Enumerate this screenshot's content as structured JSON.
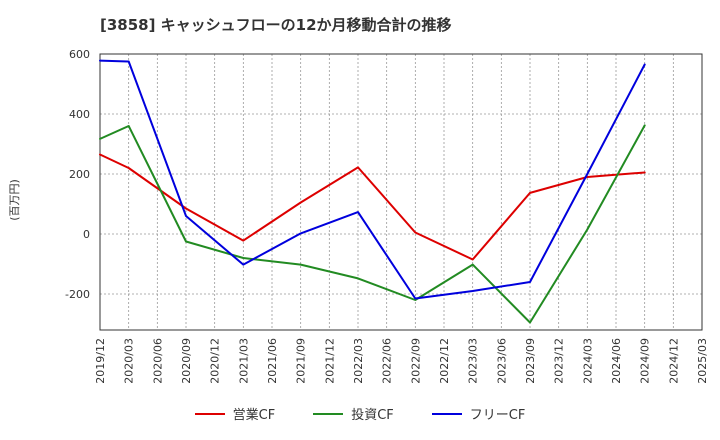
{
  "chart_data": {
    "type": "line",
    "title": "[3858]  キャッシュフローの12か月移動合計の推移",
    "ylabel": "(百万円)",
    "ylim": [
      -320,
      600
    ],
    "yticks": [
      600,
      400,
      200,
      0,
      -200
    ],
    "x_ticks": [
      "2019/12",
      "2020/03",
      "2020/06",
      "2020/09",
      "2020/12",
      "2021/03",
      "2021/06",
      "2021/09",
      "2021/12",
      "2022/03",
      "2022/06",
      "2022/09",
      "2022/12",
      "2023/03",
      "2023/06",
      "2023/09",
      "2023/12",
      "2024/03",
      "2024/06",
      "2024/09",
      "2024/12",
      "2025/03"
    ],
    "grid": true,
    "legend_position": "bottom",
    "series": [
      {
        "name": "営業CF",
        "color": "#dd0000",
        "points": [
          [
            "2019/12",
            265
          ],
          [
            "2020/03",
            220
          ],
          [
            "2020/09",
            85
          ],
          [
            "2021/03",
            -22
          ],
          [
            "2021/09",
            105
          ],
          [
            "2022/03",
            222
          ],
          [
            "2022/09",
            5
          ],
          [
            "2023/03",
            -85
          ],
          [
            "2023/09",
            137
          ],
          [
            "2024/03",
            190
          ],
          [
            "2024/09",
            205
          ]
        ]
      },
      {
        "name": "投資CF",
        "color": "#228B22",
        "points": [
          [
            "2019/12",
            317
          ],
          [
            "2020/03",
            360
          ],
          [
            "2020/09",
            -25
          ],
          [
            "2021/03",
            -80
          ],
          [
            "2021/09",
            -102
          ],
          [
            "2022/03",
            -148
          ],
          [
            "2022/09",
            -220
          ],
          [
            "2023/03",
            -102
          ],
          [
            "2023/09",
            -295
          ],
          [
            "2024/03",
            15
          ],
          [
            "2024/09",
            362
          ]
        ]
      },
      {
        "name": "フリーCF",
        "color": "#0000dd",
        "points": [
          [
            "2019/12",
            578
          ],
          [
            "2020/03",
            575
          ],
          [
            "2020/09",
            60
          ],
          [
            "2021/03",
            -102
          ],
          [
            "2021/09",
            2
          ],
          [
            "2022/03",
            73
          ],
          [
            "2022/09",
            -215
          ],
          [
            "2023/03",
            -190
          ],
          [
            "2023/09",
            -160
          ],
          [
            "2024/03",
            200
          ],
          [
            "2024/09",
            565
          ]
        ]
      }
    ]
  }
}
